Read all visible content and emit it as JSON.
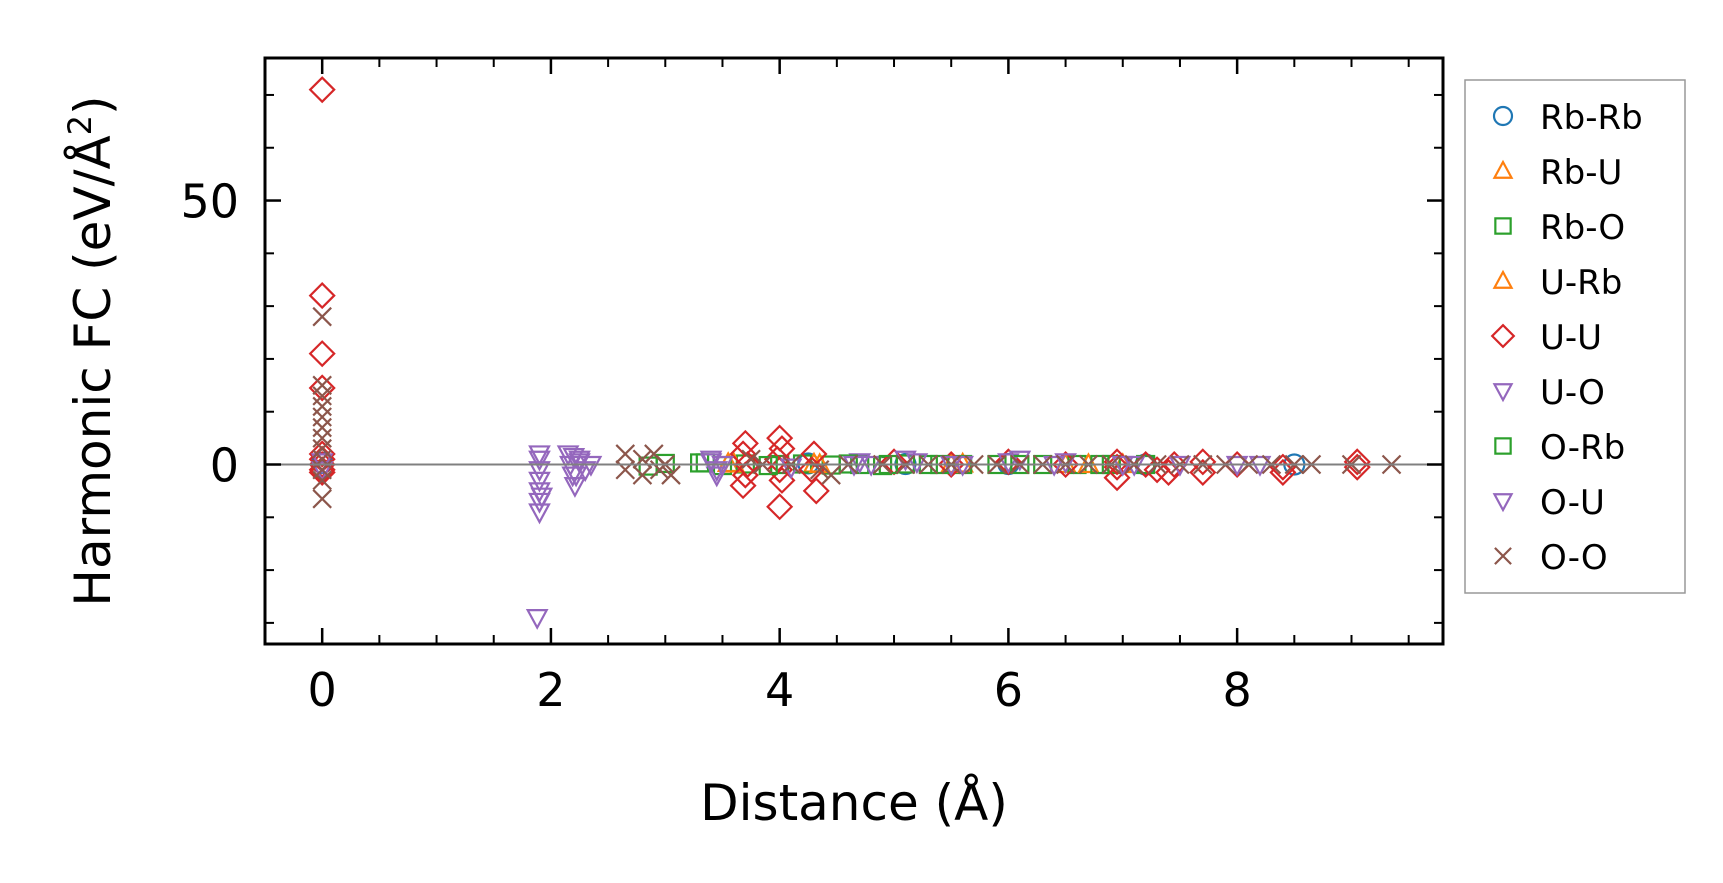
{
  "chart_data": {
    "type": "scatter",
    "xlabel": "Distance (Å)",
    "ylabel_main": "Harmonic FC (eV/Å",
    "ylabel_sup": "2",
    "ylabel_close": ")",
    "xlim": [
      -0.5,
      9.8
    ],
    "ylim": [
      -34,
      77
    ],
    "xticks": [
      0,
      2,
      4,
      6,
      8
    ],
    "xtick_labels": [
      "0",
      "2",
      "4",
      "6",
      "8"
    ],
    "yticks": [
      0,
      50
    ],
    "ytick_labels": [
      "0",
      "50"
    ],
    "x_minor_step": 0.5,
    "y_minor_step": 10,
    "zero_line": true,
    "grid": false,
    "legend_position": "outside-right",
    "series": [
      {
        "name": "Rb-Rb",
        "marker": "circle",
        "color": "#1f77b4",
        "points": [
          [
            0,
            0.3
          ],
          [
            4.25,
            0.2
          ],
          [
            5.1,
            0.1
          ],
          [
            6.0,
            0.1
          ],
          [
            7.2,
            0.0
          ],
          [
            8.5,
            0.0
          ]
        ]
      },
      {
        "name": "Rb-U",
        "marker": "triangle-up",
        "color": "#ff7f0e",
        "points": [
          [
            3.55,
            0.2
          ],
          [
            4.3,
            0.1
          ],
          [
            5.6,
            0.1
          ],
          [
            6.5,
            0.0
          ],
          [
            7.0,
            0.0
          ]
        ]
      },
      {
        "name": "Rb-O",
        "marker": "square",
        "color": "#2ca02c",
        "points": [
          [
            2.85,
            -0.3
          ],
          [
            3.0,
            0.2
          ],
          [
            3.35,
            0.3
          ],
          [
            3.5,
            -0.2
          ],
          [
            3.7,
            0.1
          ],
          [
            4.0,
            0.0
          ],
          [
            4.2,
            0.1
          ],
          [
            4.45,
            -0.1
          ],
          [
            4.7,
            0.0
          ],
          [
            4.9,
            -0.2
          ],
          [
            5.1,
            0.1
          ],
          [
            5.3,
            0.0
          ],
          [
            5.6,
            0.0
          ],
          [
            5.9,
            0.0
          ],
          [
            6.3,
            0.0
          ],
          [
            6.6,
            0.0
          ],
          [
            6.9,
            0.0
          ],
          [
            7.2,
            0.0
          ]
        ]
      },
      {
        "name": "U-Rb",
        "marker": "triangle-up",
        "color": "#ff7f0e",
        "points": [
          [
            3.6,
            0.1
          ],
          [
            4.35,
            0.0
          ],
          [
            5.5,
            0.0
          ],
          [
            6.7,
            0.0
          ]
        ]
      },
      {
        "name": "U-U",
        "marker": "diamond",
        "color": "#d62728",
        "points": [
          [
            0,
            71
          ],
          [
            0,
            32
          ],
          [
            0,
            21
          ],
          [
            0,
            14.5
          ],
          [
            0,
            2
          ],
          [
            0,
            1
          ],
          [
            0,
            0
          ],
          [
            0,
            -1
          ],
          [
            0,
            -1.5
          ],
          [
            3.7,
            4
          ],
          [
            3.68,
            2
          ],
          [
            3.72,
            0
          ],
          [
            3.7,
            -2
          ],
          [
            3.68,
            -4
          ],
          [
            4.0,
            5
          ],
          [
            4.02,
            3
          ],
          [
            3.98,
            1
          ],
          [
            4.0,
            -1
          ],
          [
            4.02,
            -3
          ],
          [
            4.0,
            -8
          ],
          [
            4.3,
            2
          ],
          [
            4.28,
            -1
          ],
          [
            4.32,
            -5
          ],
          [
            5.0,
            0.5
          ],
          [
            5.5,
            0
          ],
          [
            6.0,
            0.5
          ],
          [
            6.5,
            0
          ],
          [
            6.95,
            -0.5
          ],
          [
            6.95,
            0.5
          ],
          [
            6.95,
            -2.5
          ],
          [
            7.2,
            0
          ],
          [
            7.3,
            -1
          ],
          [
            7.4,
            -1.5
          ],
          [
            7.45,
            0
          ],
          [
            7.7,
            -1.5
          ],
          [
            7.7,
            0.5
          ],
          [
            8.0,
            0
          ],
          [
            8.4,
            -0.5
          ],
          [
            8.4,
            -1.5
          ],
          [
            9.05,
            0.5
          ],
          [
            9.05,
            -0.5
          ]
        ]
      },
      {
        "name": "U-O",
        "marker": "triangle-down",
        "color": "#9467bd",
        "points": [
          [
            0,
            0.5
          ],
          [
            1.9,
            1
          ],
          [
            1.9,
            -1
          ],
          [
            1.9,
            -3
          ],
          [
            1.9,
            -5
          ],
          [
            1.9,
            -7
          ],
          [
            1.9,
            -9
          ],
          [
            2.15,
            2
          ],
          [
            2.17,
            0
          ],
          [
            2.19,
            -2
          ],
          [
            2.21,
            -4
          ],
          [
            2.25,
            1
          ],
          [
            2.3,
            -1
          ],
          [
            2.35,
            0
          ],
          [
            3.4,
            1
          ],
          [
            3.45,
            -2
          ],
          [
            3.5,
            0
          ],
          [
            4.1,
            -0.5
          ],
          [
            4.7,
            0.5
          ],
          [
            4.8,
            0
          ],
          [
            5.2,
            0.5
          ],
          [
            5.6,
            0
          ],
          [
            6.0,
            0.5
          ],
          [
            6.5,
            0.5
          ],
          [
            7.0,
            0
          ],
          [
            7.5,
            0
          ],
          [
            8.2,
            0
          ]
        ]
      },
      {
        "name": "O-Rb",
        "marker": "square",
        "color": "#2ca02c",
        "points": [
          [
            3.3,
            0.3
          ],
          [
            3.9,
            -0.2
          ],
          [
            4.6,
            0.1
          ],
          [
            4.95,
            0.0
          ],
          [
            5.4,
            0.0
          ],
          [
            6.1,
            0.0
          ],
          [
            6.8,
            0.0
          ]
        ]
      },
      {
        "name": "O-U",
        "marker": "triangle-down",
        "color": "#9467bd",
        "points": [
          [
            0,
            -1
          ],
          [
            1.88,
            -29
          ],
          [
            1.9,
            2
          ],
          [
            1.92,
            -6
          ],
          [
            2.2,
            1.5
          ],
          [
            2.22,
            -2
          ],
          [
            2.25,
            0.5
          ],
          [
            3.4,
            0.5
          ],
          [
            3.45,
            -1
          ],
          [
            4.65,
            0
          ],
          [
            5.1,
            1
          ],
          [
            5.5,
            0
          ],
          [
            6.1,
            1
          ],
          [
            6.4,
            0
          ],
          [
            7.1,
            0
          ],
          [
            8.0,
            0
          ]
        ]
      },
      {
        "name": "O-O",
        "marker": "x",
        "color": "#8c564b",
        "points": [
          [
            0,
            28
          ],
          [
            0,
            15
          ],
          [
            0,
            13
          ],
          [
            0,
            11
          ],
          [
            0,
            9
          ],
          [
            0,
            7
          ],
          [
            0,
            5
          ],
          [
            0,
            3
          ],
          [
            0,
            1
          ],
          [
            0,
            -1
          ],
          [
            0,
            -3
          ],
          [
            0,
            -6.5
          ],
          [
            2.65,
            2
          ],
          [
            2.65,
            -1
          ],
          [
            2.8,
            1
          ],
          [
            2.8,
            -2
          ],
          [
            2.9,
            2
          ],
          [
            2.95,
            -1
          ],
          [
            3.0,
            0
          ],
          [
            3.05,
            -2
          ],
          [
            3.75,
            1
          ],
          [
            3.85,
            0
          ],
          [
            4.1,
            0
          ],
          [
            4.35,
            -1
          ],
          [
            4.45,
            -2
          ],
          [
            4.6,
            0
          ],
          [
            4.9,
            0
          ],
          [
            5.1,
            0
          ],
          [
            5.3,
            0
          ],
          [
            5.5,
            0
          ],
          [
            5.7,
            0
          ],
          [
            5.9,
            0
          ],
          [
            6.1,
            0
          ],
          [
            6.3,
            0
          ],
          [
            6.5,
            0
          ],
          [
            6.7,
            0
          ],
          [
            6.9,
            0
          ],
          [
            7.1,
            0
          ],
          [
            7.3,
            0
          ],
          [
            7.5,
            0
          ],
          [
            7.7,
            0
          ],
          [
            7.9,
            0
          ],
          [
            8.1,
            0
          ],
          [
            8.3,
            0
          ],
          [
            8.5,
            0
          ],
          [
            8.65,
            0
          ],
          [
            9.0,
            0
          ],
          [
            9.35,
            0
          ]
        ]
      }
    ]
  }
}
